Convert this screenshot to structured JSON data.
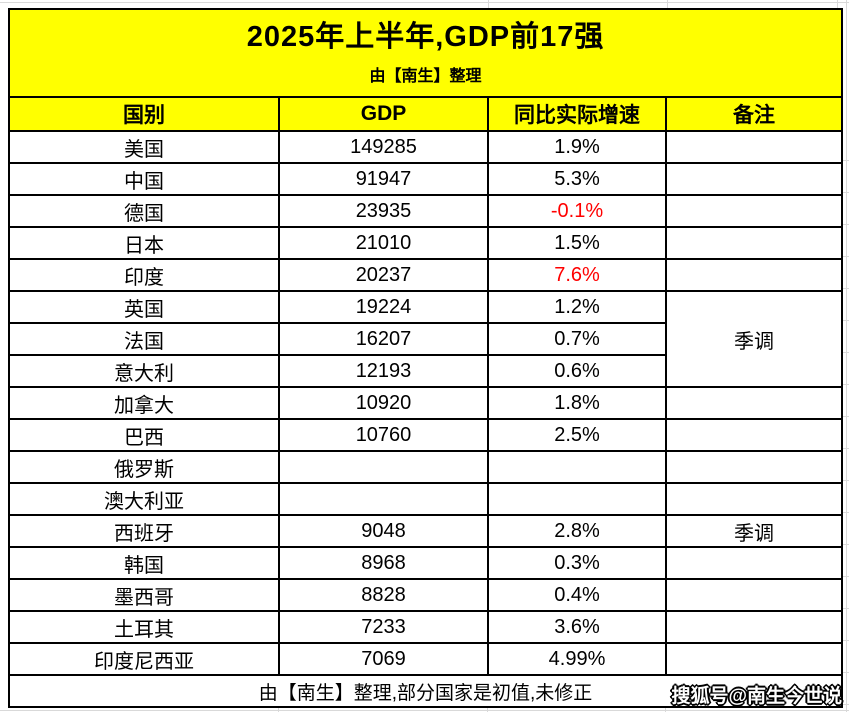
{
  "header": {
    "title": "2025年上半年,GDP前17强",
    "subtitle": "由【南生】整理"
  },
  "chart_data": {
    "type": "table",
    "title": "2025年上半年,GDP前17强",
    "subtitle": "由【南生】整理",
    "columns": [
      "国别",
      "GDP",
      "同比实际增速",
      "备注"
    ],
    "rows": [
      {
        "country": "美国",
        "gdp": "149285",
        "growth": "1.9%",
        "note": ""
      },
      {
        "country": "中国",
        "gdp": "91947",
        "growth": "5.3%",
        "note": ""
      },
      {
        "country": "德国",
        "gdp": "23935",
        "growth": "-0.1%",
        "growth_red": true,
        "note": ""
      },
      {
        "country": "日本",
        "gdp": "21010",
        "growth": "1.5%",
        "note": ""
      },
      {
        "country": "印度",
        "gdp": "20237",
        "growth": "7.6%",
        "growth_red": true,
        "note": ""
      },
      {
        "country": "英国",
        "gdp": "19224",
        "growth": "1.2%",
        "note": "季调",
        "note_rowspan": 3
      },
      {
        "country": "法国",
        "gdp": "16207",
        "growth": "0.7%",
        "note_merged": true
      },
      {
        "country": "意大利",
        "gdp": "12193",
        "growth": "0.6%",
        "note_merged": true
      },
      {
        "country": "加拿大",
        "gdp": "10920",
        "growth": "1.8%",
        "note": ""
      },
      {
        "country": "巴西",
        "gdp": "10760",
        "growth": "2.5%",
        "note": ""
      },
      {
        "country": "俄罗斯",
        "gdp": "",
        "growth": "",
        "note": ""
      },
      {
        "country": "澳大利亚",
        "gdp": "",
        "growth": "",
        "note": ""
      },
      {
        "country": "西班牙",
        "gdp": "9048",
        "growth": "2.8%",
        "note": "季调"
      },
      {
        "country": "韩国",
        "gdp": "8968",
        "growth": "0.3%",
        "note": ""
      },
      {
        "country": "墨西哥",
        "gdp": "8828",
        "growth": "0.4%",
        "note": ""
      },
      {
        "country": "土耳其",
        "gdp": "7233",
        "growth": "3.6%",
        "note": ""
      },
      {
        "country": "印度尼西亚",
        "gdp": "7069",
        "growth": "4.99%",
        "note": ""
      }
    ],
    "footer_note": "由【南生】整理,部分国家是初值,未修正"
  },
  "watermark": {
    "text": "搜狐号@南生今世说"
  },
  "colors": {
    "header_bg": "#FFFF00",
    "growth_red": "#FF0000",
    "border": "#000000"
  }
}
